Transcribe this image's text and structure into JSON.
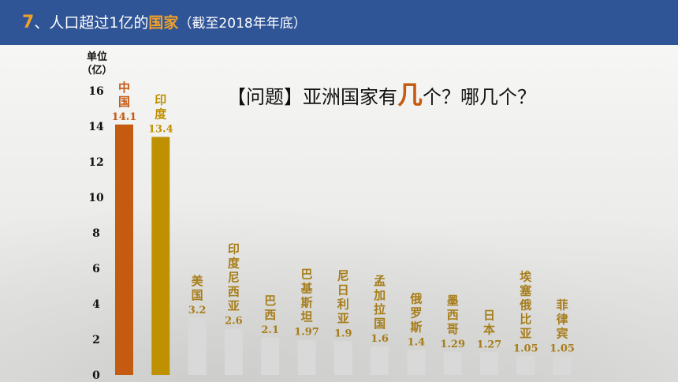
{
  "header": {
    "number": "7",
    "separator": "、",
    "title_prefix": "人口超过1亿的",
    "title_highlight": "国家",
    "subtitle": "（截至2018年年底）"
  },
  "question": {
    "prefix": "【问题】亚洲国家有",
    "highlight": "几",
    "suffix": "个？哪几个？"
  },
  "colors": {
    "header_bg": "#2f5597",
    "accent_orange": "#c55a11",
    "china_bar": "#c55a11",
    "india_bar": "#bf9000",
    "other_bar": "#d9d9d9",
    "label_gold": "#a77d1a"
  },
  "chart_data": {
    "type": "bar",
    "ylabel": "单位（亿）",
    "ylim": [
      0,
      16
    ],
    "yticks": [
      0,
      2,
      4,
      6,
      8,
      10,
      12,
      14,
      16
    ],
    "grid": false,
    "categories": [
      "中国",
      "印度",
      "美国",
      "印度尼西亚",
      "巴西",
      "巴基斯坦",
      "尼日利亚",
      "孟加拉国",
      "俄罗斯",
      "墨西哥",
      "日本",
      "埃塞俄比亚",
      "菲律宾"
    ],
    "values": [
      14.1,
      13.4,
      3.2,
      2.6,
      2.1,
      1.97,
      1.9,
      1.6,
      1.4,
      1.29,
      1.27,
      1.05,
      1.05
    ],
    "value_labels": [
      "14.1",
      "13.4",
      "3.2",
      "2.6",
      "2.1",
      "1.97",
      "1.9",
      "1.6",
      "1.4",
      "1.29",
      "1.27",
      "1.05",
      "1.05"
    ]
  }
}
